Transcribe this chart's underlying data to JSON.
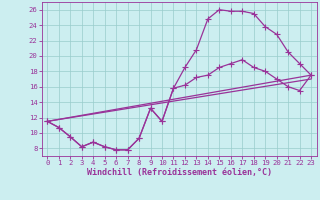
{
  "xlabel": "Windchill (Refroidissement éolien,°C)",
  "xlim": [
    -0.5,
    23.5
  ],
  "ylim": [
    7.0,
    27.0
  ],
  "xticks": [
    0,
    1,
    2,
    3,
    4,
    5,
    6,
    7,
    8,
    9,
    10,
    11,
    12,
    13,
    14,
    15,
    16,
    17,
    18,
    19,
    20,
    21,
    22,
    23
  ],
  "yticks": [
    8,
    10,
    12,
    14,
    16,
    18,
    20,
    22,
    24,
    26
  ],
  "background_color": "#cceef0",
  "grid_color": "#99cccc",
  "line_color": "#993399",
  "curve1_x": [
    0,
    1,
    2,
    3,
    4,
    5,
    6,
    7,
    8,
    9,
    10,
    11,
    12,
    13,
    14,
    15,
    16,
    17,
    18,
    19,
    20,
    21,
    22,
    23
  ],
  "curve1_y": [
    11.5,
    10.7,
    9.5,
    8.2,
    8.8,
    8.2,
    7.8,
    7.8,
    9.3,
    13.2,
    11.5,
    15.8,
    18.5,
    20.8,
    24.8,
    26.0,
    25.8,
    25.8,
    25.5,
    23.8,
    22.8,
    20.5,
    19.0,
    17.5
  ],
  "curve2_x": [
    0,
    1,
    2,
    3,
    4,
    5,
    6,
    7,
    8,
    9,
    10,
    11,
    12,
    13,
    14,
    15,
    16,
    17,
    18,
    19,
    20,
    21,
    22,
    23
  ],
  "curve2_y": [
    11.5,
    10.7,
    9.5,
    8.2,
    8.8,
    8.2,
    7.8,
    7.8,
    9.3,
    13.2,
    11.5,
    15.8,
    16.2,
    17.2,
    17.5,
    18.5,
    19.0,
    19.5,
    18.5,
    18.0,
    17.0,
    16.0,
    15.5,
    17.5
  ],
  "line1_x": [
    0,
    23
  ],
  "line1_y": [
    11.5,
    17.5
  ],
  "line2_x": [
    0,
    23
  ],
  "line2_y": [
    11.5,
    17.0
  ],
  "marker_size": 2.5,
  "linewidth": 0.9,
  "tick_fontsize": 5.2,
  "label_fontsize": 6.0
}
